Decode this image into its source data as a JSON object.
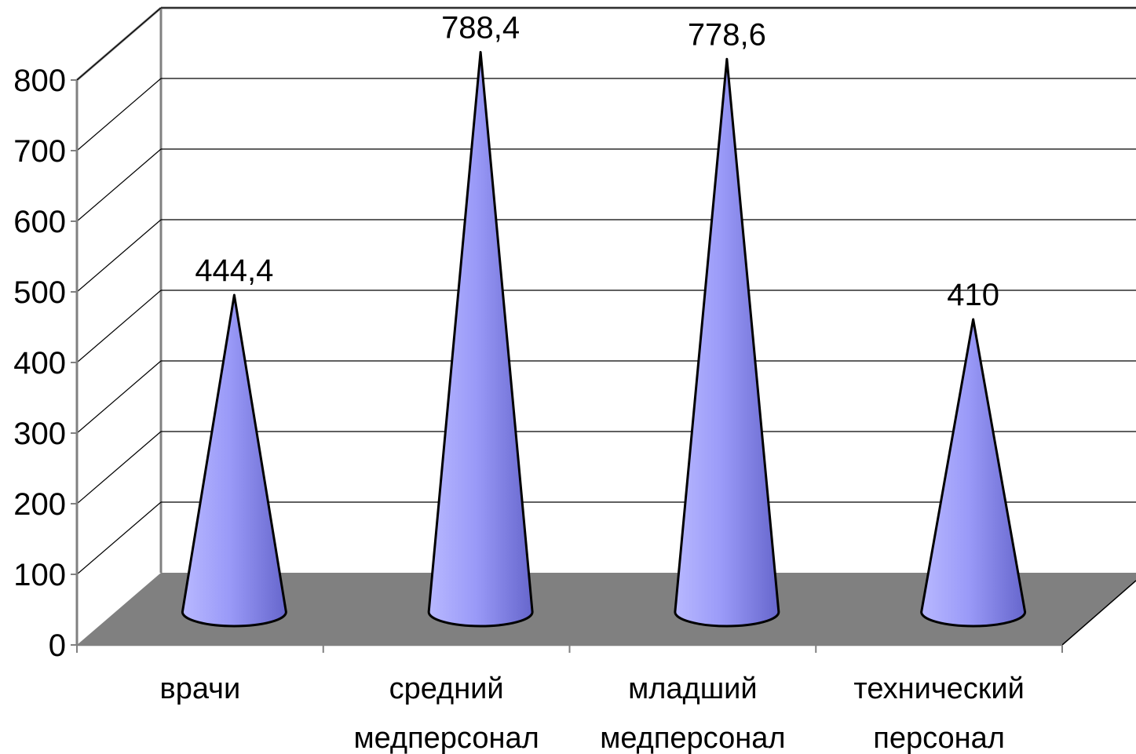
{
  "chart_data": {
    "type": "bar",
    "shape": "cone-3d",
    "title": "",
    "xlabel": "",
    "ylabel": "",
    "ylim": [
      0,
      800
    ],
    "yticks": [
      0,
      100,
      200,
      300,
      400,
      500,
      600,
      700,
      800
    ],
    "ytick_labels": [
      "0",
      "100",
      "200",
      "300",
      "400",
      "500",
      "600",
      "700",
      "800"
    ],
    "grid": true,
    "categories": [
      [
        "врачи"
      ],
      [
        "средний",
        "медперсонал"
      ],
      [
        "младший",
        "медперсонал"
      ],
      [
        "технический",
        "персонал"
      ]
    ],
    "values": [
      444.4,
      788.4,
      778.6,
      410
    ],
    "value_labels": [
      "444,4",
      "788,4",
      "778,6",
      "410"
    ],
    "colors": {
      "cone_light": "#a3a3ff",
      "cone_mid": "#8c8cf2",
      "cone_dark": "#6a6ad6",
      "floor": "#808080",
      "axis": "#808080",
      "grid": "#000000"
    }
  }
}
